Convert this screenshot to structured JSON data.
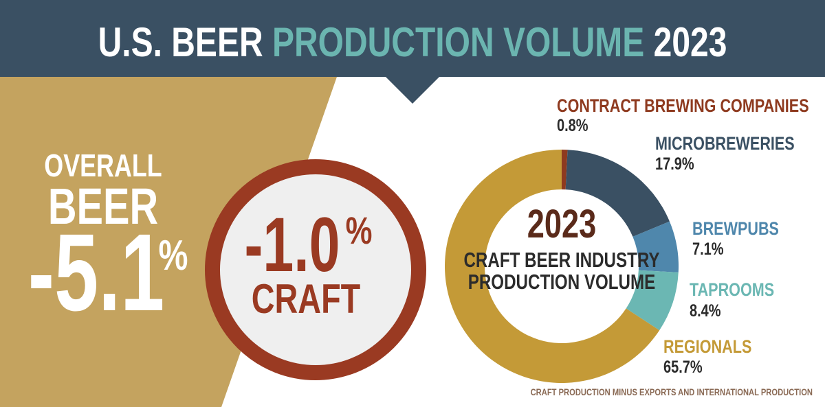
{
  "header": {
    "title_start": "U.S. BEER",
    "title_highlight": "PRODUCTION VOLUME",
    "title_end": "2023"
  },
  "overall": {
    "line1": "OVERALL",
    "line2": "BEER",
    "value": "-5.1",
    "unit": "%"
  },
  "craft": {
    "value": "-1.0",
    "unit": "%",
    "label": "CRAFT"
  },
  "chart_data": {
    "type": "pie",
    "donut": true,
    "center_title": "2023",
    "center_subtitle": [
      "CRAFT BEER INDUSTRY",
      "PRODUCTION VOLUME"
    ],
    "categories": [
      "CONTRACT BREWING COMPANIES",
      "MICROBREWERIES",
      "BREWPUBS",
      "TAPROOMS",
      "REGIONALS"
    ],
    "values": [
      0.8,
      17.9,
      7.1,
      8.4,
      65.7
    ],
    "value_labels": [
      "0.8%",
      "17.9%",
      "7.1%",
      "8.4%",
      "65.7%"
    ],
    "colors": [
      "#8e3a1f",
      "#3a5063",
      "#4f87ac",
      "#6bb7b3",
      "#c49a37"
    ]
  },
  "footnote": "CRAFT PRODUCTION MINUS EXPORTS AND INTERNATIONAL PRODUCTION"
}
